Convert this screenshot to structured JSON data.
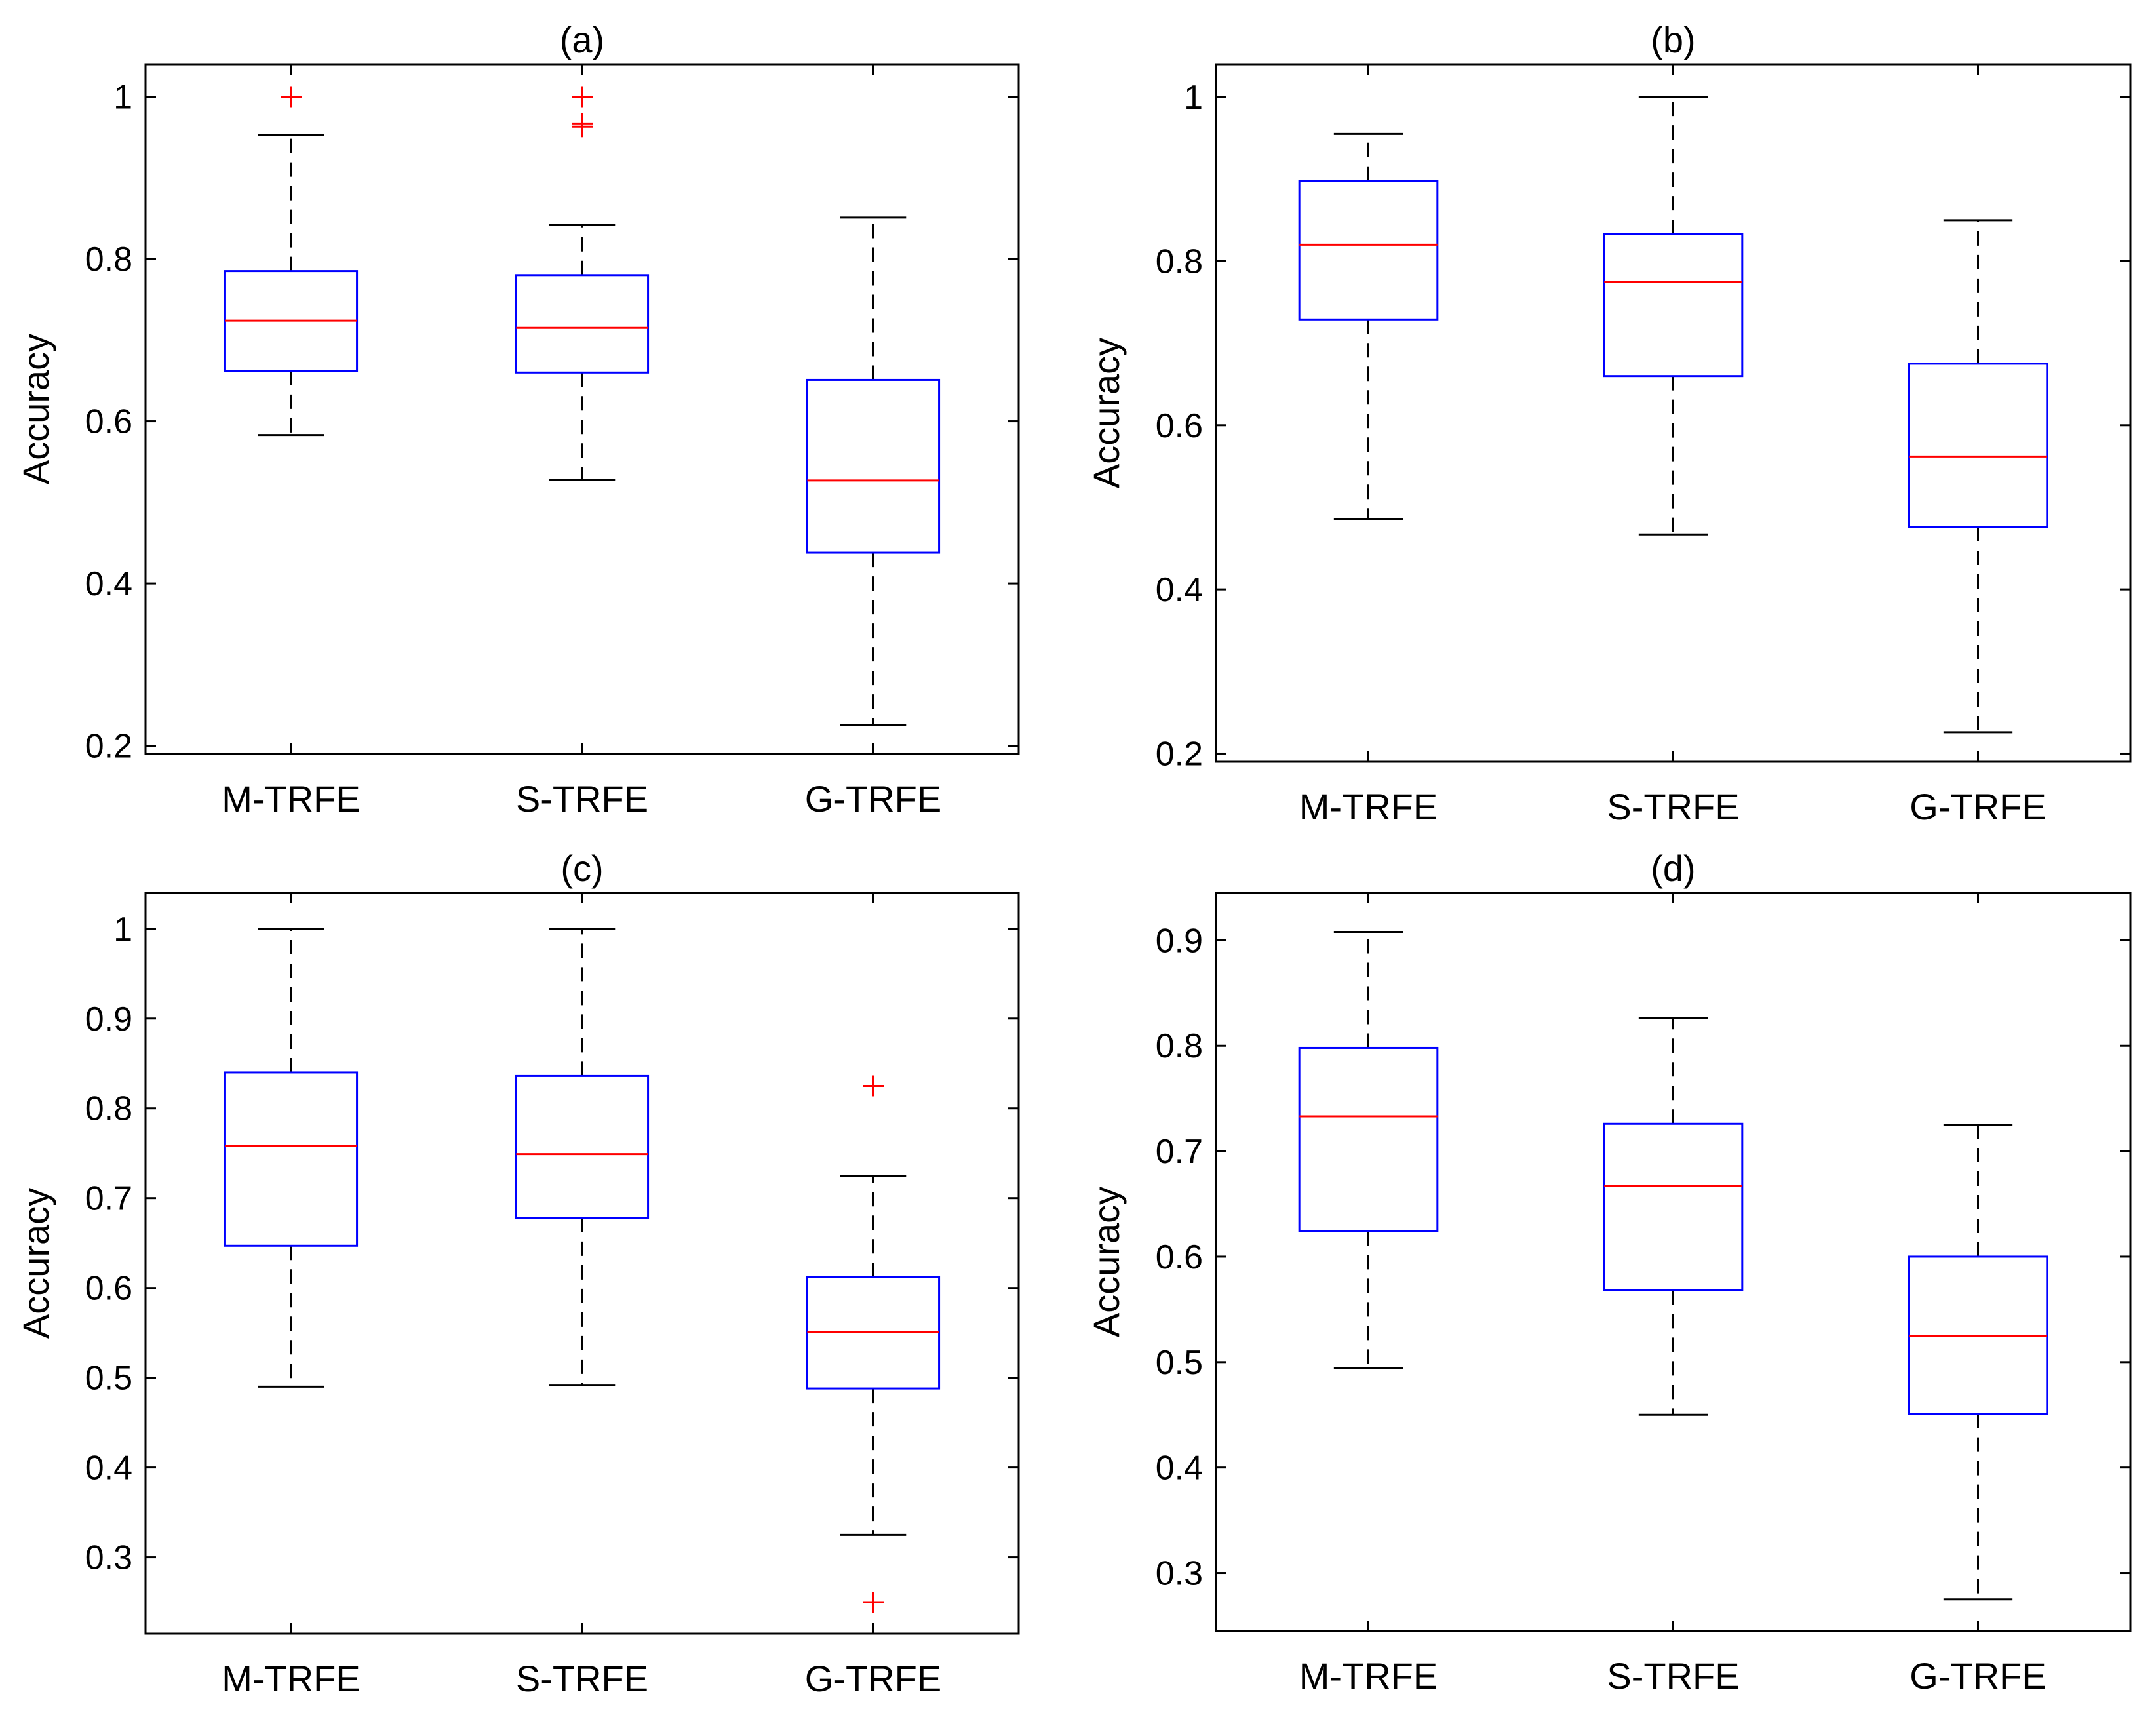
{
  "chart_data": [
    {
      "type": "box",
      "title": "(a)",
      "ylabel": "Accuracy",
      "xlabel": "",
      "ylim": [
        0.19,
        1.04
      ],
      "yticks": [
        0.2,
        0.4,
        0.6,
        0.8,
        1
      ],
      "ytick_labels": [
        "0.2",
        "0.4",
        "0.6",
        "0.8",
        "1"
      ],
      "categories": [
        "M-TRFE",
        "S-TRFE",
        "G-TRFE"
      ],
      "boxes": [
        {
          "whisker_low": 0.583,
          "q1": 0.662,
          "median": 0.724,
          "q3": 0.785,
          "whisker_high": 0.953,
          "outliers": [
            1.0
          ]
        },
        {
          "whisker_low": 0.528,
          "q1": 0.66,
          "median": 0.715,
          "q3": 0.78,
          "whisker_high": 0.842,
          "outliers": [
            1.0,
            0.967,
            0.963
          ]
        },
        {
          "whisker_low": 0.226,
          "q1": 0.438,
          "median": 0.527,
          "q3": 0.651,
          "whisker_high": 0.851,
          "outliers": []
        }
      ],
      "colors": {
        "box": "#0000ff",
        "median": "#ff0000",
        "outlier": "#ff0000",
        "whisker": "#000000"
      }
    },
    {
      "type": "box",
      "title": "(b)",
      "ylabel": "Accuracy",
      "xlabel": "",
      "ylim": [
        0.19,
        1.04
      ],
      "yticks": [
        0.2,
        0.4,
        0.6,
        0.8,
        1
      ],
      "ytick_labels": [
        "0.2",
        "0.4",
        "0.6",
        "0.8",
        "1"
      ],
      "categories": [
        "M-TRFE",
        "S-TRFE",
        "G-TRFE"
      ],
      "boxes": [
        {
          "whisker_low": 0.486,
          "q1": 0.729,
          "median": 0.82,
          "q3": 0.898,
          "whisker_high": 0.955,
          "outliers": []
        },
        {
          "whisker_low": 0.467,
          "q1": 0.66,
          "median": 0.775,
          "q3": 0.833,
          "whisker_high": 1.0,
          "outliers": []
        },
        {
          "whisker_low": 0.226,
          "q1": 0.476,
          "median": 0.562,
          "q3": 0.675,
          "whisker_high": 0.85,
          "outliers": []
        }
      ],
      "colors": {
        "box": "#0000ff",
        "median": "#ff0000",
        "outlier": "#ff0000",
        "whisker": "#000000"
      }
    },
    {
      "type": "box",
      "title": "(c)",
      "ylabel": "Accuracy",
      "xlabel": "",
      "ylim": [
        0.215,
        1.04
      ],
      "yticks": [
        0.3,
        0.4,
        0.5,
        0.6,
        0.7,
        0.8,
        0.9,
        1
      ],
      "ytick_labels": [
        "0.3",
        "0.4",
        "0.5",
        "0.6",
        "0.7",
        "0.8",
        "0.9",
        "1"
      ],
      "categories": [
        "M-TRFE",
        "S-TRFE",
        "G-TRFE"
      ],
      "boxes": [
        {
          "whisker_low": 0.49,
          "q1": 0.647,
          "median": 0.758,
          "q3": 0.84,
          "whisker_high": 1.0,
          "outliers": []
        },
        {
          "whisker_low": 0.492,
          "q1": 0.678,
          "median": 0.749,
          "q3": 0.836,
          "whisker_high": 1.0,
          "outliers": []
        },
        {
          "whisker_low": 0.325,
          "q1": 0.488,
          "median": 0.551,
          "q3": 0.612,
          "whisker_high": 0.725,
          "outliers": [
            0.825,
            0.25
          ]
        }
      ],
      "colors": {
        "box": "#0000ff",
        "median": "#ff0000",
        "outlier": "#ff0000",
        "whisker": "#000000"
      }
    },
    {
      "type": "box",
      "title": "(d)",
      "ylabel": "Accuracy",
      "xlabel": "",
      "ylim": [
        0.245,
        0.945
      ],
      "yticks": [
        0.3,
        0.4,
        0.5,
        0.6,
        0.7,
        0.8,
        0.9
      ],
      "ytick_labels": [
        "0.3",
        "0.4",
        "0.5",
        "0.6",
        "0.7",
        "0.8",
        "0.9"
      ],
      "categories": [
        "M-TRFE",
        "S-TRFE",
        "G-TRFE"
      ],
      "boxes": [
        {
          "whisker_low": 0.494,
          "q1": 0.624,
          "median": 0.733,
          "q3": 0.798,
          "whisker_high": 0.908,
          "outliers": []
        },
        {
          "whisker_low": 0.45,
          "q1": 0.568,
          "median": 0.667,
          "q3": 0.726,
          "whisker_high": 0.826,
          "outliers": []
        },
        {
          "whisker_low": 0.275,
          "q1": 0.451,
          "median": 0.525,
          "q3": 0.6,
          "whisker_high": 0.725,
          "outliers": []
        }
      ],
      "colors": {
        "box": "#0000ff",
        "median": "#ff0000",
        "outlier": "#ff0000",
        "whisker": "#000000"
      }
    }
  ]
}
